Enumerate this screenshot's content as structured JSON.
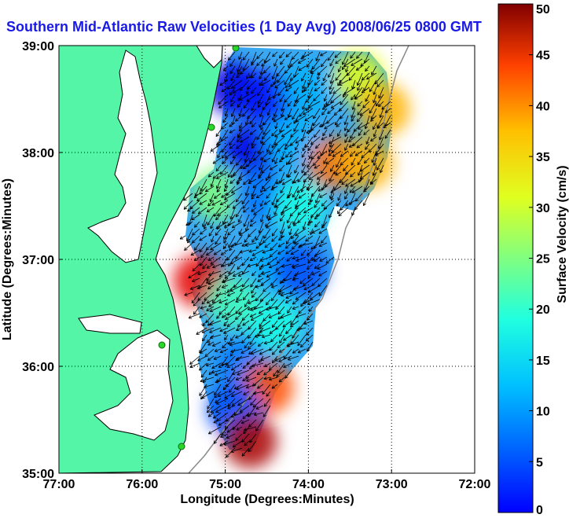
{
  "chart_data": {
    "type": "heatmap",
    "title": "Southern Mid-Atlantic Raw Velocities (1 Day Avg) 2008/06/25 0800 GMT",
    "xlabel": "Longitude (Degrees:Minutes)",
    "ylabel": "Latitude (Degrees:Minutes)",
    "xlim": [
      -77,
      -72
    ],
    "ylim": [
      35,
      39
    ],
    "x_ticks": [
      {
        "value": -77,
        "label": "77:00"
      },
      {
        "value": -76,
        "label": "76:00"
      },
      {
        "value": -75,
        "label": "75:00"
      },
      {
        "value": -74,
        "label": "74:00"
      },
      {
        "value": -73,
        "label": "73:00"
      },
      {
        "value": -72,
        "label": "72:00"
      }
    ],
    "y_ticks": [
      {
        "value": 35,
        "label": "35:00"
      },
      {
        "value": 36,
        "label": "36:00"
      },
      {
        "value": 37,
        "label": "37:00"
      },
      {
        "value": 38,
        "label": "38:00"
      },
      {
        "value": 39,
        "label": "39:00"
      }
    ],
    "grid": true,
    "colorbar": {
      "label": "Surface Velocity (cm/s)",
      "range": [
        0,
        50
      ],
      "ticks": [
        {
          "value": 0,
          "label": "0"
        },
        {
          "value": 5,
          "label": "5"
        },
        {
          "value": 10,
          "label": "10"
        },
        {
          "value": 15,
          "label": "15"
        },
        {
          "value": 20,
          "label": "20"
        },
        {
          "value": 25,
          "label": "25"
        },
        {
          "value": 30,
          "label": "30"
        },
        {
          "value": 35,
          "label": "35"
        },
        {
          "value": 40,
          "label": "40"
        },
        {
          "value": 45,
          "label": "45"
        },
        {
          "value": 50,
          "label": "50"
        }
      ],
      "colormap": "jet"
    },
    "land_color": "#55f5a8",
    "ocean_color": "#ffffff",
    "velocity_field_samples": [
      {
        "lon": -74.9,
        "lat": 38.6,
        "speed": 5
      },
      {
        "lon": -74.5,
        "lat": 38.5,
        "speed": 7
      },
      {
        "lon": -74.0,
        "lat": 38.6,
        "speed": 15
      },
      {
        "lon": -73.4,
        "lat": 38.7,
        "speed": 30
      },
      {
        "lon": -73.1,
        "lat": 38.4,
        "speed": 35
      },
      {
        "lon": -74.7,
        "lat": 38.0,
        "speed": 5
      },
      {
        "lon": -74.2,
        "lat": 38.1,
        "speed": 15
      },
      {
        "lon": -73.7,
        "lat": 37.9,
        "speed": 38
      },
      {
        "lon": -73.3,
        "lat": 37.9,
        "speed": 35
      },
      {
        "lon": -75.1,
        "lat": 37.6,
        "speed": 25
      },
      {
        "lon": -74.6,
        "lat": 37.6,
        "speed": 12
      },
      {
        "lon": -74.1,
        "lat": 37.5,
        "speed": 20
      },
      {
        "lon": -74.4,
        "lat": 37.0,
        "speed": 15
      },
      {
        "lon": -74.1,
        "lat": 36.9,
        "speed": 10
      },
      {
        "lon": -75.3,
        "lat": 36.8,
        "speed": 45
      },
      {
        "lon": -74.9,
        "lat": 36.6,
        "speed": 22
      },
      {
        "lon": -74.4,
        "lat": 36.4,
        "speed": 20
      },
      {
        "lon": -74.8,
        "lat": 36.0,
        "speed": 12
      },
      {
        "lon": -74.5,
        "lat": 35.8,
        "speed": 40
      },
      {
        "lon": -74.9,
        "lat": 35.6,
        "speed": 10
      },
      {
        "lon": -74.7,
        "lat": 35.3,
        "speed": 48
      }
    ]
  }
}
